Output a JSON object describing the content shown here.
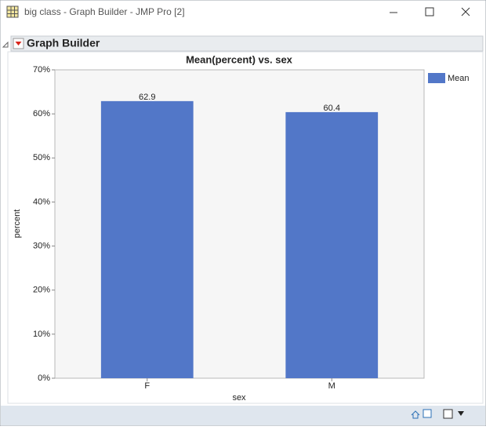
{
  "window": {
    "title": "big class - Graph Builder - JMP Pro [2]"
  },
  "outline": {
    "title": "Graph Builder"
  },
  "chart_data": {
    "type": "bar",
    "title": "Mean(percent) vs. sex",
    "x_label": "sex",
    "y_label": "percent",
    "categories": [
      "F",
      "M"
    ],
    "series": [
      {
        "name": "Mean",
        "color": "#5277c8",
        "values": [
          62.9,
          60.4
        ]
      }
    ],
    "ylim": [
      0,
      70
    ],
    "yticks": [
      {
        "value": 0,
        "label": "0%"
      },
      {
        "value": 10,
        "label": "10%"
      },
      {
        "value": 20,
        "label": "20%"
      },
      {
        "value": 30,
        "label": "30%"
      },
      {
        "value": 40,
        "label": "40%"
      },
      {
        "value": 50,
        "label": "50%"
      },
      {
        "value": 60,
        "label": "60%"
      },
      {
        "value": 70,
        "label": "70%"
      }
    ],
    "legend": "right"
  }
}
